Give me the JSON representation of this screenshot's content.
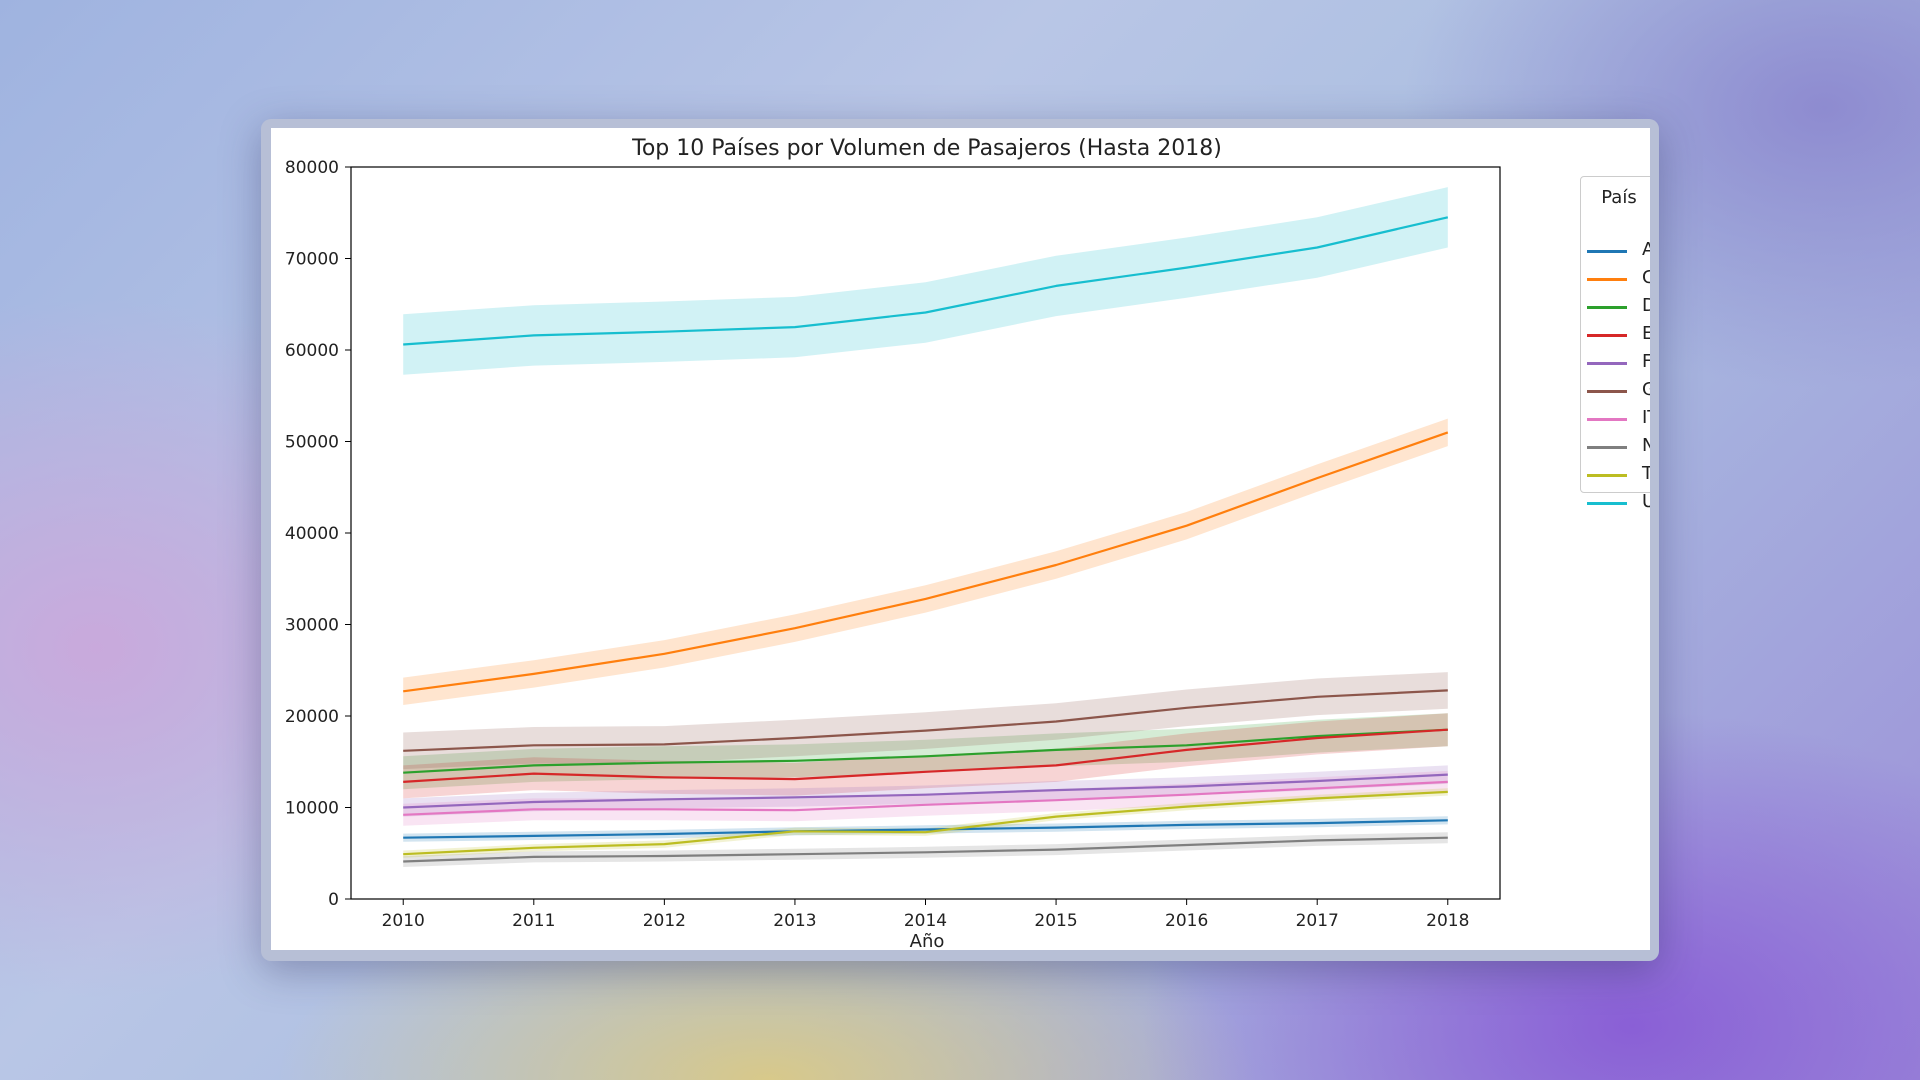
{
  "chart_data": {
    "type": "line",
    "title": "Top 10 Países por Volumen de Pasajeros (Hasta 2018)",
    "xlabel": "Año",
    "ylabel": "",
    "x": [
      2010,
      2011,
      2012,
      2013,
      2014,
      2015,
      2016,
      2017,
      2018
    ],
    "xlim": [
      2009.6,
      2018.4
    ],
    "ylim": [
      0,
      80000
    ],
    "yticks": [
      0,
      10000,
      20000,
      30000,
      40000,
      50000,
      60000,
      70000,
      80000
    ],
    "legend_title": "País",
    "legend_position": "outside right (clipped)",
    "series": [
      {
        "name": "AU",
        "label_visible": "AU",
        "color": "#1f77b4",
        "band": 450,
        "values": [
          6700,
          6900,
          7100,
          7400,
          7600,
          7800,
          8100,
          8300,
          8600
        ]
      },
      {
        "name": "CH",
        "label_visible": "CH",
        "color": "#ff7f0e",
        "band": 1500,
        "values": [
          22700,
          24600,
          26800,
          29600,
          32800,
          36500,
          40800,
          46000,
          51000
        ]
      },
      {
        "name": "DE",
        "label_visible": "DE",
        "color": "#2ca02c",
        "band": 1800,
        "values": [
          13800,
          14600,
          14900,
          15100,
          15600,
          16300,
          16800,
          17800,
          18500
        ]
      },
      {
        "name": "ES",
        "label_visible": "ES",
        "color": "#d62728",
        "band": 1800,
        "values": [
          12800,
          13700,
          13300,
          13100,
          13900,
          14600,
          16300,
          17600,
          18500
        ]
      },
      {
        "name": "FR",
        "label_visible": "FR",
        "color": "#9467bd",
        "band": 1000,
        "values": [
          10000,
          10600,
          10900,
          11100,
          11400,
          11900,
          12300,
          12900,
          13600
        ]
      },
      {
        "name": "GB",
        "label_visible": "GB",
        "color": "#8c564b",
        "band": 2000,
        "values": [
          16200,
          16800,
          16900,
          17600,
          18400,
          19400,
          20900,
          22100,
          22800
        ]
      },
      {
        "name": "IT",
        "label_visible": "ITA",
        "color": "#e377c2",
        "band": 1200,
        "values": [
          9200,
          9800,
          9800,
          9700,
          10300,
          10800,
          11400,
          12100,
          12800
        ]
      },
      {
        "name": "NL",
        "label_visible": "NL",
        "color": "#7f7f7f",
        "band": 600,
        "values": [
          4100,
          4600,
          4700,
          4900,
          5100,
          5400,
          5900,
          6400,
          6700
        ]
      },
      {
        "name": "TH",
        "label_visible": "TH",
        "color": "#bcbd22",
        "band": 400,
        "values": [
          4900,
          5600,
          6000,
          7400,
          7300,
          9000,
          10100,
          11000,
          11700
        ]
      },
      {
        "name": "US",
        "label_visible": "US",
        "color": "#17becf",
        "band": 3300,
        "values": [
          60600,
          61600,
          62000,
          62500,
          64100,
          67000,
          69000,
          71200,
          74500
        ]
      }
    ]
  }
}
